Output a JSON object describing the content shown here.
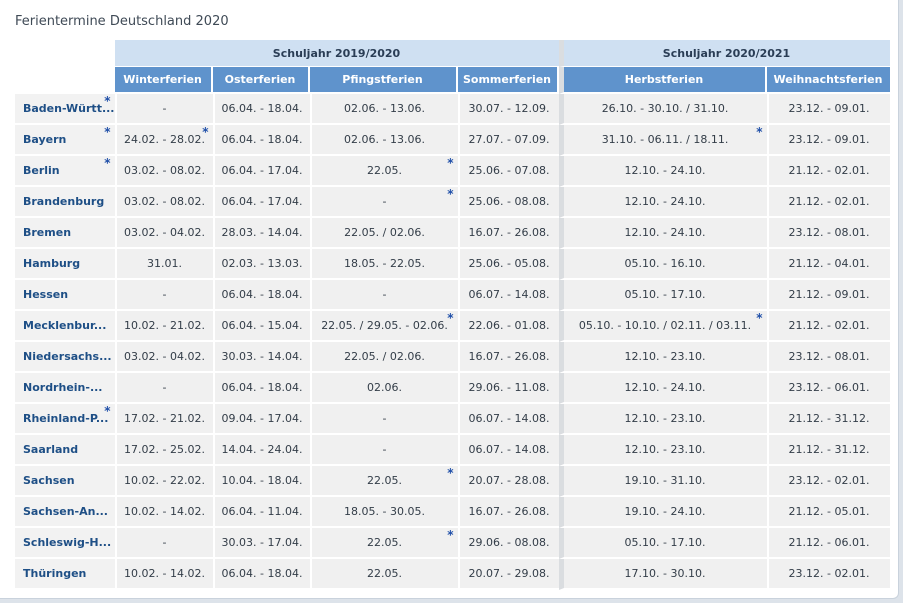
{
  "title": "Ferientermine Deutschland 2020",
  "school_years": [
    "Schuljahr 2019/2020",
    "Schuljahr 2020/2021"
  ],
  "columns": [
    "Winterferien",
    "Osterferien",
    "Pfingstferien",
    "Sommerferien",
    "Herbstferien",
    "Weihnachtsferien"
  ],
  "footnote_marker": "*",
  "rows": [
    {
      "state": "Baden-Württ...",
      "state_star": true,
      "winter": "-",
      "oster": "06.04. - 18.04.",
      "pfingst": "02.06. - 13.06.",
      "sommer": "30.07. - 12.09.",
      "herbst": "26.10. - 30.10. / 31.10.",
      "weihnacht": "23.12. - 09.01."
    },
    {
      "state": "Bayern",
      "state_star": true,
      "winter": "24.02. - 28.02.",
      "winter_star": true,
      "oster": "06.04. - 18.04.",
      "pfingst": "02.06. - 13.06.",
      "sommer": "27.07. - 07.09.",
      "herbst": "31.10. - 06.11. / 18.11.",
      "herbst_star": true,
      "weihnacht": "23.12. - 09.01."
    },
    {
      "state": "Berlin",
      "state_star": true,
      "winter": "03.02. - 08.02.",
      "oster": "06.04. - 17.04.",
      "pfingst": "22.05.",
      "pfingst_star": true,
      "sommer": "25.06. - 07.08.",
      "herbst": "12.10. - 24.10.",
      "weihnacht": "21.12. - 02.01."
    },
    {
      "state": "Brandenburg",
      "winter": "03.02. - 08.02.",
      "oster": "06.04. - 17.04.",
      "pfingst": "-",
      "pfingst_star": true,
      "sommer": "25.06. - 08.08.",
      "herbst": "12.10. - 24.10.",
      "weihnacht": "21.12. - 02.01."
    },
    {
      "state": "Bremen",
      "winter": "03.02. - 04.02.",
      "oster": "28.03. - 14.04.",
      "pfingst": "22.05. / 02.06.",
      "sommer": "16.07. - 26.08.",
      "herbst": "12.10. - 24.10.",
      "weihnacht": "23.12. - 08.01."
    },
    {
      "state": "Hamburg",
      "winter": "31.01.",
      "oster": "02.03. - 13.03.",
      "pfingst": "18.05. - 22.05.",
      "sommer": "25.06. - 05.08.",
      "herbst": "05.10. - 16.10.",
      "weihnacht": "21.12. - 04.01."
    },
    {
      "state": "Hessen",
      "winter": "-",
      "oster": "06.04. - 18.04.",
      "pfingst": "-",
      "sommer": "06.07. - 14.08.",
      "herbst": "05.10. - 17.10.",
      "weihnacht": "21.12. - 09.01."
    },
    {
      "state": "Mecklenbur...",
      "winter": "10.02. - 21.02.",
      "oster": "06.04. - 15.04.",
      "pfingst": "22.05. / 29.05. - 02.06.",
      "pfingst_star": true,
      "sommer": "22.06. - 01.08.",
      "herbst": "05.10. - 10.10. / 02.11. / 03.11.",
      "herbst_star": true,
      "weihnacht": "21.12. - 02.01."
    },
    {
      "state": "Niedersachs...",
      "winter": "03.02. - 04.02.",
      "oster": "30.03. - 14.04.",
      "pfingst": "22.05. / 02.06.",
      "sommer": "16.07. - 26.08.",
      "herbst": "12.10. - 23.10.",
      "weihnacht": "23.12. - 08.01."
    },
    {
      "state": "Nordrhein-...",
      "winter": "-",
      "oster": "06.04. - 18.04.",
      "pfingst": "02.06.",
      "sommer": "29.06. - 11.08.",
      "herbst": "12.10. - 24.10.",
      "weihnacht": "23.12. - 06.01."
    },
    {
      "state": "Rheinland-P...",
      "state_star": true,
      "winter": "17.02. - 21.02.",
      "oster": "09.04. - 17.04.",
      "pfingst": "-",
      "sommer": "06.07. - 14.08.",
      "herbst": "12.10. - 23.10.",
      "weihnacht": "21.12. - 31.12."
    },
    {
      "state": "Saarland",
      "winter": "17.02. - 25.02.",
      "oster": "14.04. - 24.04.",
      "pfingst": "-",
      "sommer": "06.07. - 14.08.",
      "herbst": "12.10. - 23.10.",
      "weihnacht": "21.12. - 31.12."
    },
    {
      "state": "Sachsen",
      "winter": "10.02. - 22.02.",
      "oster": "10.04. - 18.04.",
      "pfingst": "22.05.",
      "pfingst_star": true,
      "sommer": "20.07. - 28.08.",
      "herbst": "19.10. - 31.10.",
      "weihnacht": "23.12. - 02.01."
    },
    {
      "state": "Sachsen-An...",
      "winter": "10.02. - 14.02.",
      "oster": "06.04. - 11.04.",
      "pfingst": "18.05. - 30.05.",
      "sommer": "16.07. - 26.08.",
      "herbst": "19.10. - 24.10.",
      "weihnacht": "21.12. - 05.01."
    },
    {
      "state": "Schleswig-H...",
      "winter": "-",
      "oster": "30.03. - 17.04.",
      "pfingst": "22.05.",
      "pfingst_star": true,
      "sommer": "29.06. - 08.08.",
      "herbst": "05.10. - 17.10.",
      "weihnacht": "21.12. - 06.01."
    },
    {
      "state": "Thüringen",
      "winter": "10.02. - 14.02.",
      "oster": "06.04. - 18.04.",
      "pfingst": "22.05.",
      "sommer": "20.07. - 29.08.",
      "herbst": "17.10. - 30.10.",
      "weihnacht": "23.12. - 02.01."
    }
  ]
}
